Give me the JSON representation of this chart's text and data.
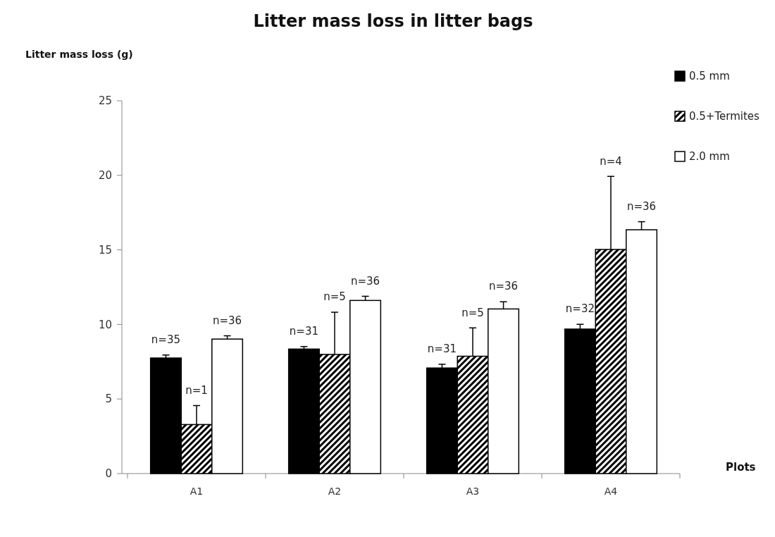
{
  "chart_data": {
    "type": "bar",
    "title": "Litter mass loss in litter bags",
    "ylabel": "Litter mass loss (g)",
    "xlabel": "Plots",
    "categories": [
      "A1",
      "A2",
      "A3",
      "A4"
    ],
    "series": [
      {
        "name": "0.5 mm",
        "color": "#000000",
        "values": [
          7.75,
          8.35,
          7.08,
          9.69
        ],
        "errors": [
          0.2,
          0.17,
          0.25,
          0.32
        ]
      },
      {
        "name": "0.5+Termites",
        "color": "#000000",
        "values": [
          3.29,
          7.99,
          7.87,
          15.03
        ],
        "errors": [
          1.27,
          2.83,
          1.9,
          4.9
        ]
      },
      {
        "name": "2.0 mm",
        "color": "#ffffff",
        "values": [
          9.02,
          11.61,
          11.04,
          16.35
        ],
        "errors": [
          0.22,
          0.28,
          0.48,
          0.54
        ]
      }
    ],
    "annotations": [
      "n=35",
      "n=1",
      "n=36",
      "n=31",
      "n=5",
      "n=36",
      "n=31",
      "n=5",
      "n=36",
      "n=32",
      "n=4",
      "n=36"
    ],
    "ylim": [
      0,
      25
    ],
    "yticks": [
      0,
      5,
      10,
      15,
      20,
      25
    ],
    "legend": "top right"
  }
}
